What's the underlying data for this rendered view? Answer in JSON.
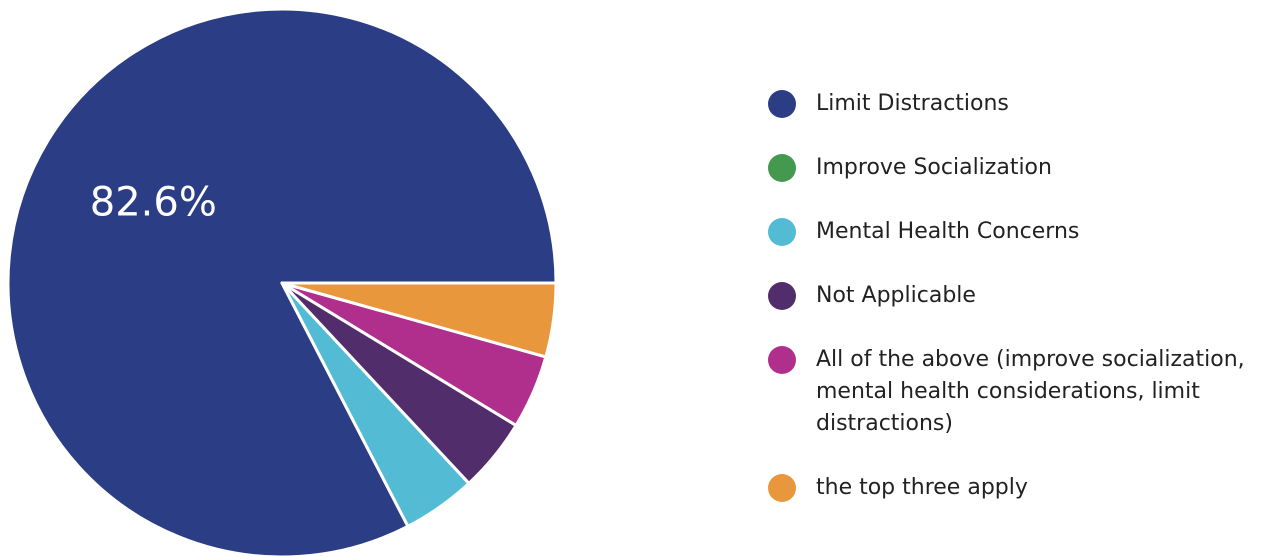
{
  "chart_data": {
    "type": "pie",
    "start_angle_deg": 0,
    "direction": "counterclockwise",
    "slices": [
      {
        "label": "Limit Distractions",
        "value": 82.6,
        "color": "#2B3D84",
        "data_label": "82.6%"
      },
      {
        "label": "Improve Socialization",
        "value": 0,
        "color": "#45994F"
      },
      {
        "label": "Mental Health Concerns",
        "value": 4.35,
        "color": "#53BCD4"
      },
      {
        "label": "Not Applicable",
        "value": 4.35,
        "color": "#522D6B"
      },
      {
        "label": "All of the above (improve socialization, mental health considerations, limit distractions)",
        "value": 4.35,
        "color": "#B02E8C"
      },
      {
        "label": "the top three apply",
        "value": 4.35,
        "color": "#E8973D"
      }
    ],
    "legend_position": "right"
  }
}
